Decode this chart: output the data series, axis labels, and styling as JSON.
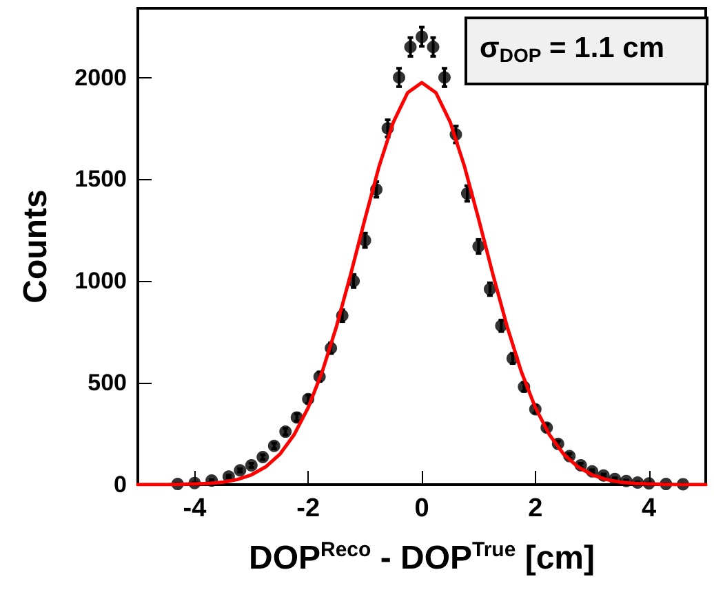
{
  "chart_data": {
    "type": "scatter",
    "xlabel": "DOP$^{Reco}$ - DOP$^{True}$ [cm]",
    "ylabel": "Counts",
    "xlim": [
      -5,
      5
    ],
    "ylim": [
      0,
      2340
    ],
    "xticks": [
      -4,
      -2,
      0,
      2,
      4
    ],
    "yticks": [
      0,
      500,
      1000,
      1500,
      2000
    ],
    "grid": false,
    "annotations": [
      "σ$_{DOP}$ = 1.1 cm"
    ],
    "series": [
      {
        "color": "#000000",
        "marker": "circle",
        "x": [
          -4.3,
          -4.0,
          -3.7,
          -3.4,
          -3.2,
          -3.0,
          -2.8,
          -2.6,
          -2.4,
          -2.2,
          -2.0,
          -1.8,
          -1.6,
          -1.4,
          -1.2,
          -1.0,
          -0.8,
          -0.6,
          -0.4,
          -0.2,
          0,
          0.2,
          0.4,
          0.6,
          0.8,
          1.0,
          1.2,
          1.4,
          1.6,
          1.8,
          2.0,
          2.2,
          2.4,
          2.6,
          2.8,
          3.0,
          3.2,
          3.4,
          3.6,
          3.8,
          4.0,
          4.3,
          4.6
        ],
        "values": [
          3,
          8,
          20,
          40,
          70,
          95,
          135,
          190,
          260,
          330,
          420,
          530,
          670,
          830,
          1000,
          1200,
          1450,
          1750,
          2000,
          2150,
          2200,
          2150,
          2000,
          1720,
          1430,
          1170,
          960,
          780,
          620,
          480,
          370,
          280,
          200,
          140,
          95,
          65,
          45,
          28,
          18,
          10,
          6,
          3,
          2
        ],
        "errors": [
          2,
          3,
          4,
          6,
          8,
          10,
          12,
          14,
          16,
          18,
          20,
          23,
          26,
          29,
          32,
          35,
          38,
          42,
          45,
          46,
          47,
          46,
          45,
          41,
          38,
          34,
          31,
          28,
          25,
          22,
          19,
          17,
          14,
          12,
          10,
          8,
          7,
          5,
          4,
          3,
          2,
          2,
          1
        ]
      },
      {
        "type": "line",
        "color": "#ff0000",
        "marker": "none",
        "line_style": "solid",
        "x": [
          -5,
          -4.5,
          -4,
          -3.75,
          -3.5,
          -3.25,
          -3,
          -2.75,
          -2.5,
          -2.25,
          -2,
          -1.75,
          -1.5,
          -1.25,
          -1,
          -0.75,
          -0.5,
          -0.25,
          0,
          0.25,
          0.5,
          0.75,
          1,
          1.25,
          1.5,
          1.75,
          2,
          2.25,
          2.5,
          2.75,
          3,
          3.25,
          3.5,
          3.75,
          4,
          4.5,
          5
        ],
        "values": [
          0,
          0,
          3,
          6,
          12,
          25,
          48,
          87,
          149,
          244,
          378,
          557,
          779,
          1035,
          1306,
          1565,
          1781,
          1925,
          1975,
          1925,
          1781,
          1565,
          1306,
          1035,
          779,
          557,
          378,
          244,
          149,
          87,
          48,
          25,
          12,
          6,
          3,
          0,
          0
        ]
      }
    ]
  }
}
